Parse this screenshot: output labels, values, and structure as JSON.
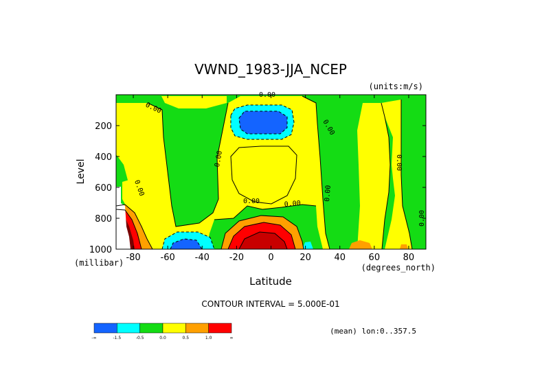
{
  "chart_data": {
    "type": "contour",
    "title": "VWND_1983-JJA_NCEP",
    "units": "(units:m/s)",
    "xlabel": "Latitude",
    "ylabel": "Level",
    "x_units": "(degrees_north)",
    "y_units": "(millibar)",
    "xlim": [
      -90,
      90
    ],
    "ylim": [
      1000,
      0
    ],
    "x_ticks": [
      -80,
      -60,
      -40,
      -20,
      0,
      20,
      40,
      60,
      80
    ],
    "y_ticks": [
      200,
      400,
      600,
      800,
      1000
    ],
    "contour_interval_text": "CONTOUR INTERVAL = 5.000E-01",
    "mean_text": "(mean) lon:0..357.5",
    "contour_labels": [
      "0.00"
    ],
    "legend": {
      "labels": [
        "-∞",
        "-1.5",
        "-0.5",
        "0.0",
        "0.5",
        "1.0",
        "∞"
      ],
      "colors": [
        "#1464ff",
        "#00ffff",
        "#14dc14",
        "#ffff00",
        "#ffa000",
        "#ff0000"
      ]
    },
    "fill_colors": {
      "lt_-1.5": "#1464ff",
      "-1.5_-0.5": "#00ffff",
      "-0.5_0.0": "#14dc14",
      "0.0_0.5": "#ffff00",
      "0.5_1.0": "#ffa000",
      "gt_1.0": "#ff0000",
      "high_core": "#c80000",
      "very_high_core": "#780000"
    }
  }
}
